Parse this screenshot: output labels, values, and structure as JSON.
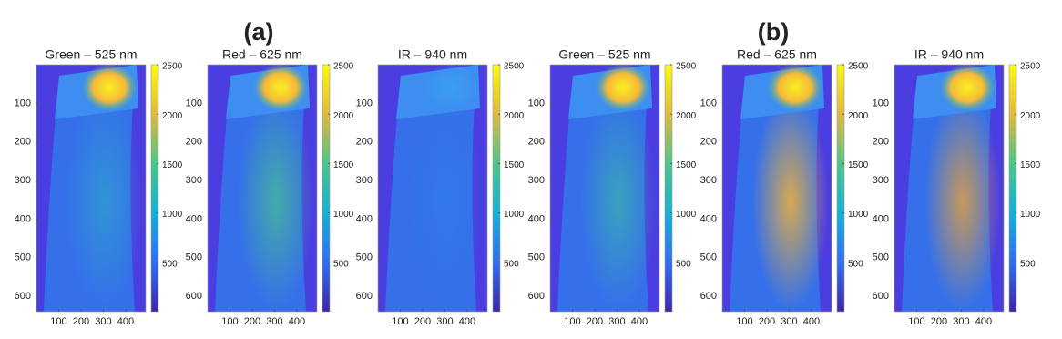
{
  "chart_data": [
    {
      "type": "image",
      "title": "Green – 525 nm",
      "xlim": [
        0,
        490
      ],
      "ylim": [
        640,
        0
      ],
      "xticks": [
        100,
        200,
        300,
        400
      ],
      "yticks": [
        100,
        200,
        300,
        400,
        500,
        600
      ],
      "clim": [
        0,
        2500
      ],
      "cticks": [
        500,
        1000,
        1500,
        2000,
        2500
      ]
    },
    {
      "type": "image",
      "title": "Red – 625 nm",
      "annotation": "(a)",
      "xlim": [
        0,
        490
      ],
      "ylim": [
        640,
        0
      ],
      "xticks": [
        100,
        200,
        300,
        400
      ],
      "yticks": [
        100,
        200,
        300,
        400,
        500,
        600
      ],
      "clim": [
        0,
        2500
      ],
      "cticks": [
        500,
        1000,
        1500,
        2000,
        2500
      ]
    },
    {
      "type": "image",
      "title": "IR – 940 nm",
      "xlim": [
        0,
        490
      ],
      "ylim": [
        640,
        0
      ],
      "xticks": [
        100,
        200,
        300,
        400
      ],
      "yticks": [
        100,
        200,
        300,
        400,
        500,
        600
      ],
      "clim": [
        0,
        2500
      ],
      "cticks": [
        500,
        1000,
        1500,
        2000,
        2500
      ]
    },
    {
      "type": "image",
      "title": "Green – 525 nm",
      "xlim": [
        0,
        490
      ],
      "ylim": [
        640,
        0
      ],
      "xticks": [
        100,
        200,
        300,
        400
      ],
      "yticks": [
        100,
        200,
        300,
        400,
        500,
        600
      ],
      "clim": [
        0,
        2500
      ],
      "cticks": [
        500,
        1000,
        1500,
        2000,
        2500
      ]
    },
    {
      "type": "image",
      "title": "Red – 625 nm",
      "annotation": "(b)",
      "xlim": [
        0,
        490
      ],
      "ylim": [
        640,
        0
      ],
      "xticks": [
        100,
        200,
        300,
        400
      ],
      "yticks": [
        100,
        200,
        300,
        400,
        500,
        600
      ],
      "clim": [
        0,
        2500
      ],
      "cticks": [
        500,
        1000,
        1500,
        2000,
        2500
      ]
    },
    {
      "type": "image",
      "title": "IR – 940 nm",
      "xlim": [
        0,
        490
      ],
      "ylim": [
        640,
        0
      ],
      "xticks": [
        100,
        200,
        300,
        400
      ],
      "yticks": [
        100,
        200,
        300,
        400,
        500,
        600
      ],
      "clim": [
        0,
        2500
      ],
      "cticks": [
        500,
        1000,
        1500,
        2000,
        2500
      ]
    }
  ]
}
